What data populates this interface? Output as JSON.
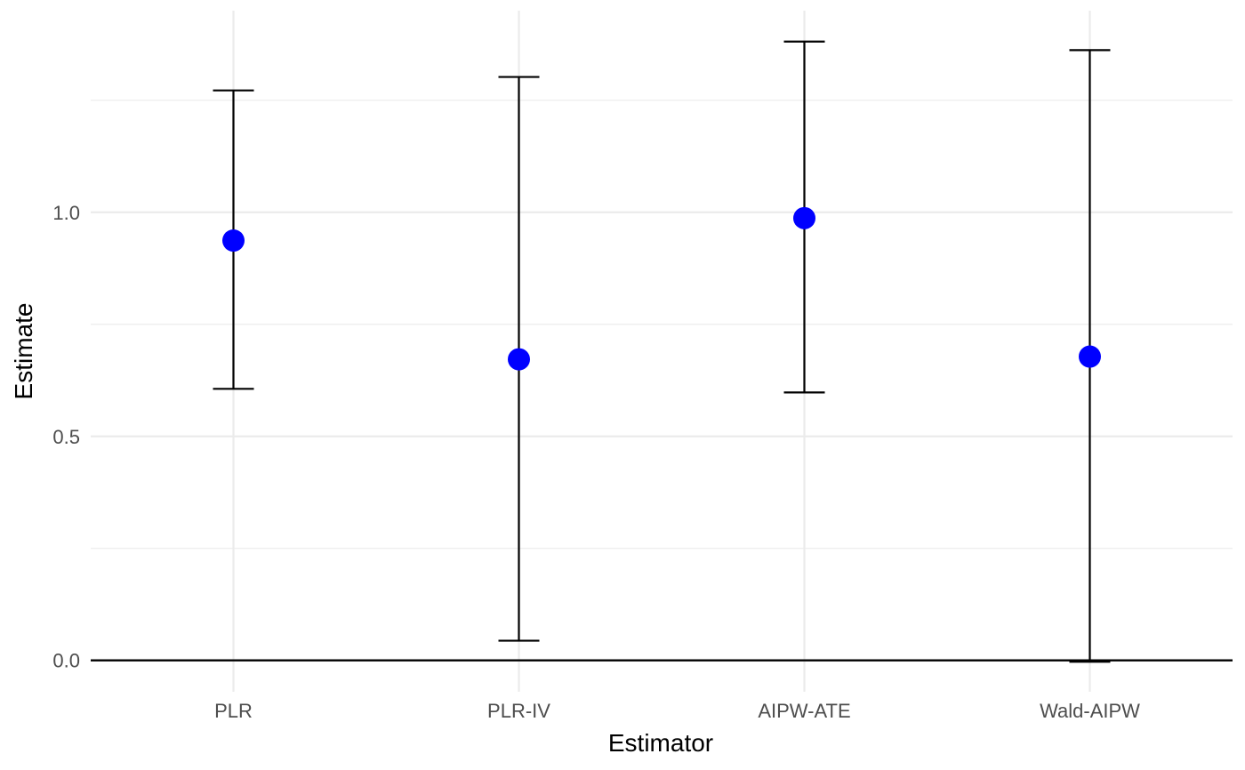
{
  "chart_data": {
    "type": "errorbar",
    "categories": [
      "PLR",
      "PLR-IV",
      "AIPW-ATE",
      "Wald-AIPW"
    ],
    "estimates": [
      0.937,
      0.672,
      0.987,
      0.678
    ],
    "lower": [
      0.606,
      0.044,
      0.598,
      -0.003
    ],
    "upper": [
      1.272,
      1.302,
      1.381,
      1.362
    ],
    "xlabel": "Estimator",
    "ylabel": "Estimate",
    "ylim": [
      -0.07,
      1.45
    ],
    "yticks": [
      0.0,
      0.5,
      1.0
    ],
    "ytick_labels": [
      "0.0",
      "0.5",
      "1.0"
    ],
    "reference_line": 0,
    "grid": true,
    "colors": {
      "point": "#0000ff",
      "errorbar": "#000000",
      "grid": "#ebebeb",
      "reference_line": "#000000"
    }
  }
}
